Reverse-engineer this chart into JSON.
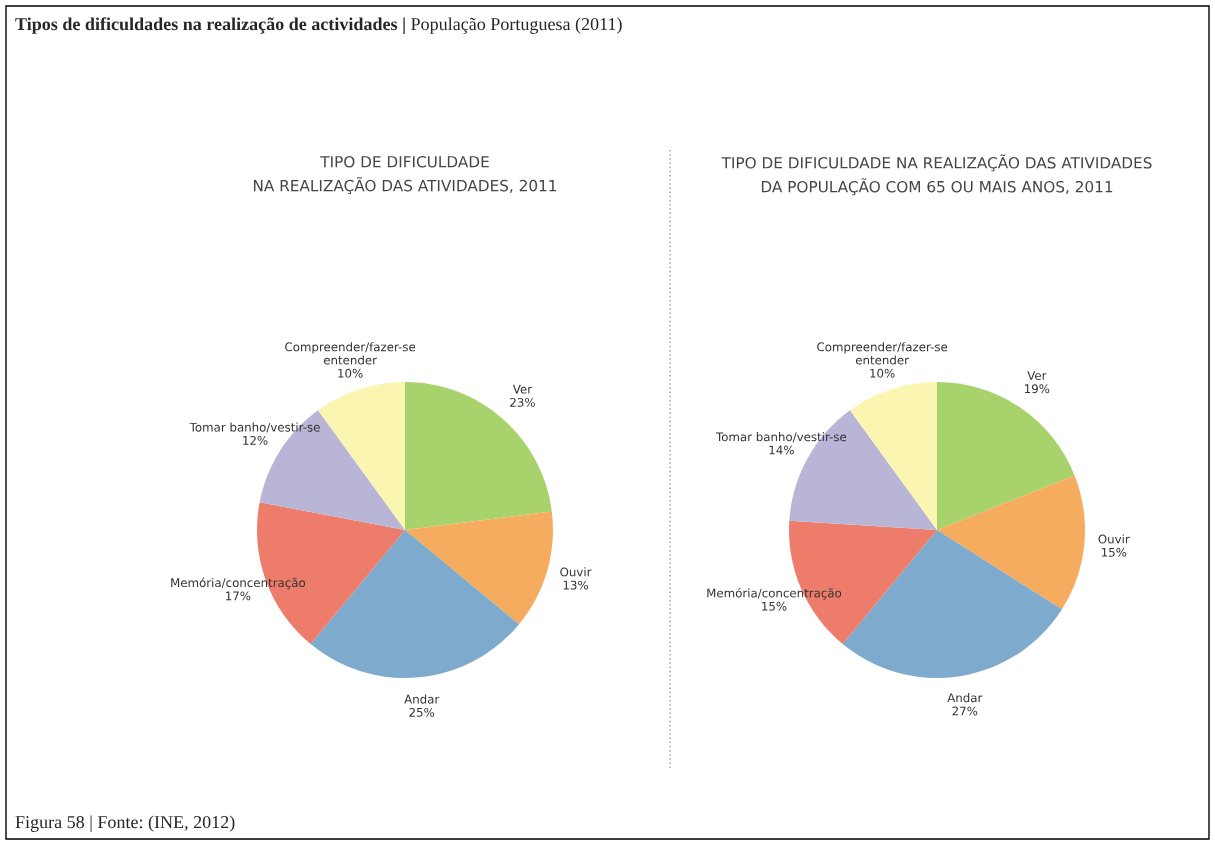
{
  "chart_data": [
    {
      "type": "pie",
      "title": "TIPO DE DIFICULDADE\nNA REALIZAÇÃO DAS ATIVIDADES, 2011",
      "categories": [
        "Ver",
        "Ouvir",
        "Andar",
        "Memória/concentração",
        "Tomar banho/vestir-se",
        "Compreender/fazer-se\nentender"
      ],
      "values": [
        23,
        13,
        25,
        17,
        12,
        10
      ],
      "value_labels": [
        "23%",
        "13%",
        "25%",
        "17%",
        "12%",
        "10%"
      ],
      "colors": [
        "#a8d26b",
        "#f5ac5f",
        "#7eaacd",
        "#ee7c6b",
        "#b8b5d6",
        "#faf6b2"
      ],
      "annotations": [
        "Tipos de dificuldades na realização de actividades |",
        " População Portuguesa (2011)",
        "Figura 58 | Fonte: (INE, 2012)"
      ]
    },
    {
      "type": "pie",
      "title": "TIPO DE DIFICULDADE NA REALIZAÇÃO DAS ATIVIDADES\nDA POPULAÇÃO COM 65 OU MAIS ANOS, 2011",
      "categories": [
        "Ver",
        "Ouvir",
        "Andar",
        "Memória/concentração",
        "Tomar banho/vestir-se",
        "Compreender/fazer-se\nentender"
      ],
      "values": [
        19,
        15,
        27,
        15,
        14,
        10
      ],
      "value_labels": [
        "19%",
        "15%",
        "27%",
        "15%",
        "14%",
        "10%"
      ],
      "colors": [
        "#a8d26b",
        "#f5ac5f",
        "#7eaacd",
        "#ee7c6b",
        "#b8b5d6",
        "#faf6b2"
      ]
    }
  ]
}
